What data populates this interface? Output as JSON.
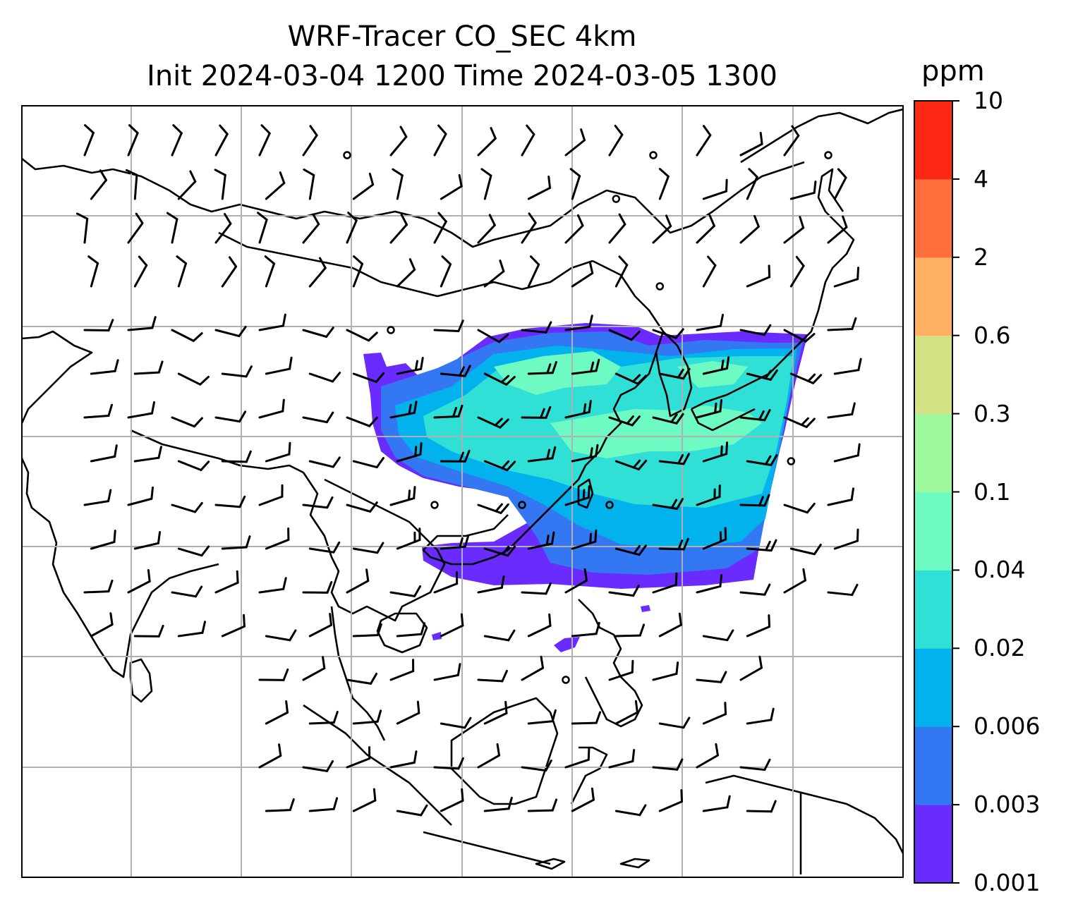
{
  "title_line1": "WRF-Tracer CO_SEC 4km",
  "title_line2": "Init 2024-03-04 1200 Time 2024-03-05 1300",
  "colorbar": {
    "unit": "ppm",
    "levels": [
      "0.001",
      "0.003",
      "0.006",
      "0.02",
      "0.04",
      "0.1",
      "0.3",
      "0.6",
      "2",
      "4",
      "10"
    ],
    "colors": [
      "#6a2bff",
      "#3477f2",
      "#02b2ec",
      "#30dfd6",
      "#6dfac3",
      "#9df99b",
      "#d3e285",
      "#ffb060",
      "#ff6f3d",
      "#ff2815"
    ]
  },
  "map": {
    "gridlines": true,
    "coastline_color": "#000000",
    "gridline_color": "#b0b0b0",
    "field_icons": [
      "wind-barb-icon",
      "calm-wind-circle-icon"
    ]
  }
}
